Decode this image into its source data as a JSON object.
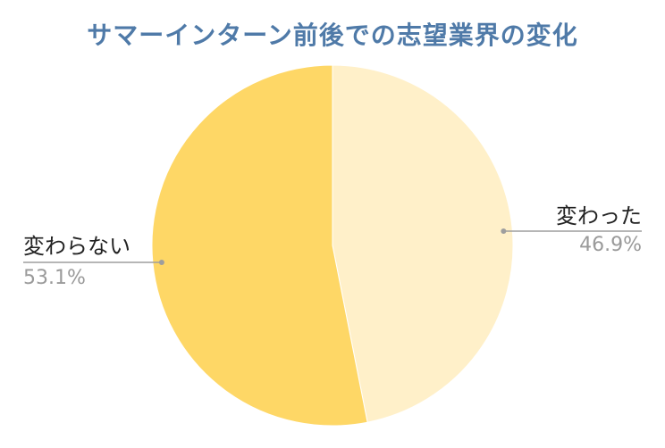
{
  "chart_data": {
    "type": "pie",
    "title": "サマーインターン前後での志望業界の変化",
    "slices": [
      {
        "label": "変わった",
        "value": 46.9,
        "value_label": "46.9%",
        "color": "#fff0c9"
      },
      {
        "label": "変わらない",
        "value": 53.1,
        "value_label": "53.1%",
        "color": "#fed766"
      }
    ],
    "start_angle": "12 o'clock",
    "direction": "clockwise",
    "legend": "none",
    "label_line_color": "#9e9e9e"
  }
}
